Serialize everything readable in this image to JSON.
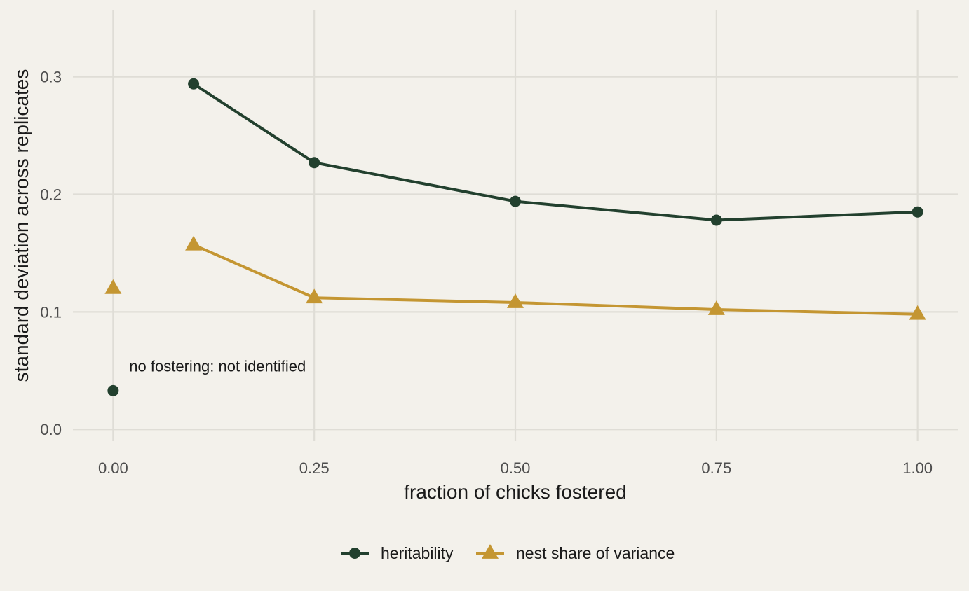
{
  "chart_data": {
    "type": "line",
    "xlabel": "fraction of chicks fostered",
    "ylabel": "standard deviation across replicates",
    "xlim": [
      -0.05,
      1.05
    ],
    "ylim": [
      -0.01,
      0.357
    ],
    "x_ticks": [
      0.0,
      0.25,
      0.5,
      0.75,
      1.0
    ],
    "x_tick_labels": [
      "0.00",
      "0.25",
      "0.50",
      "0.75",
      "1.00"
    ],
    "y_ticks": [
      0.0,
      0.1,
      0.2,
      0.3
    ],
    "y_tick_labels": [
      "0.0",
      "0.1",
      "0.2",
      "0.3"
    ],
    "grid": true,
    "legend_position": "bottom",
    "series": [
      {
        "name": "heritability",
        "color": "#22402e",
        "marker": "circle",
        "isolated_points": [
          {
            "x": 0.0,
            "y": 0.033
          }
        ],
        "x": [
          0.1,
          0.25,
          0.5,
          0.75,
          1.0
        ],
        "values": [
          0.294,
          0.227,
          0.194,
          0.178,
          0.185
        ]
      },
      {
        "name": "nest share of variance",
        "color": "#c49632",
        "marker": "triangle",
        "isolated_points": [
          {
            "x": 0.0,
            "y": 0.12
          }
        ],
        "x": [
          0.1,
          0.25,
          0.5,
          0.75,
          1.0
        ],
        "values": [
          0.157,
          0.112,
          0.108,
          0.102,
          0.098
        ]
      }
    ],
    "annotations": [
      {
        "text": "no fostering: not identified",
        "x": 0.02,
        "y": 0.054
      }
    ]
  },
  "colors": {
    "background": "#f3f1eb",
    "grid": "#dfddd6"
  }
}
